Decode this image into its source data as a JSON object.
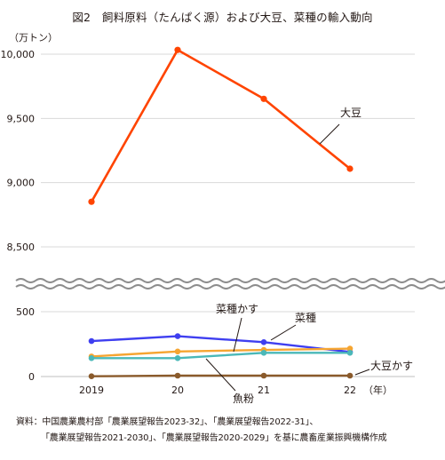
{
  "title": "図2　飼料原料（たんぱく源）および大豆、菜種の輸入動向",
  "unit_label": "（万トン）",
  "source_line1": "資料：中国農業農村部「農業展望報告2023-32」、「農業展望報告2022-31」、",
  "source_line2": "「農業展望報告2021-2030」、「農業展望報告2020-2029」を基に農畜産業振興機構作成",
  "chart_data": {
    "type": "line",
    "x_categories": [
      "2019",
      "20",
      "21",
      "22"
    ],
    "x_unit": "（年）",
    "axis_break": true,
    "y_upper": {
      "ylim": [
        8500,
        10000
      ],
      "ticks": [
        "8,500",
        "9,000",
        "9,500",
        "10,000"
      ],
      "tick_values": [
        8500,
        9000,
        9500,
        10000
      ]
    },
    "y_lower": {
      "ylim": [
        0,
        500
      ],
      "ticks": [
        "0",
        "500"
      ],
      "tick_values": [
        0,
        500
      ]
    },
    "grid": true,
    "series": [
      {
        "name": "大豆",
        "color": "#ff4400",
        "panel": "upper",
        "values": [
          8851,
          10033,
          9652,
          9108
        ]
      },
      {
        "name": "菜種かす",
        "color": "#3f3ff0",
        "panel": "lower",
        "values": [
          273,
          311,
          265,
          190
        ]
      },
      {
        "name": "菜種",
        "color": "#f6a531",
        "panel": "lower",
        "values": [
          155,
          193,
          205,
          215
        ]
      },
      {
        "name": "魚粉",
        "color": "#4ab8b8",
        "panel": "lower",
        "values": [
          142,
          142,
          183,
          183
        ]
      },
      {
        "name": "大豆かす",
        "color": "#8a5a2b",
        "panel": "lower",
        "values": [
          2,
          7,
          7,
          7
        ]
      }
    ]
  }
}
